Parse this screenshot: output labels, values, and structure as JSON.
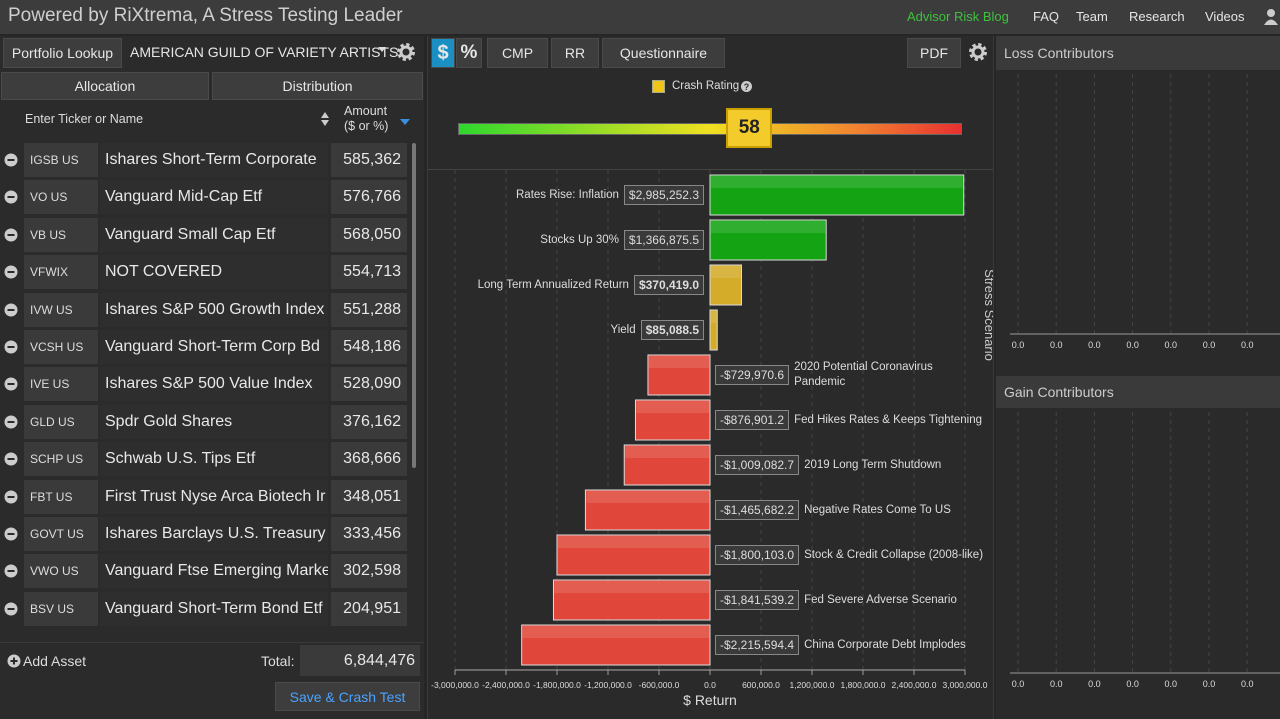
{
  "header": {
    "title": "Powered by RiXtrema, A Stress Testing Leader",
    "links": [
      "Advisor Risk Blog",
      "FAQ",
      "Team",
      "Research",
      "Videos"
    ]
  },
  "portfolio": {
    "lookup_button": "Portfolio Lookup",
    "selected": "AMERICAN GUILD OF VARIETY ARTISTS...",
    "tabs": [
      "Allocation",
      "Distribution"
    ],
    "columns": [
      "Enter Ticker or Name",
      "Amount ($ or %)"
    ],
    "rows": [
      [
        "IGSB US",
        "Ishares Short-Term Corporate",
        "585,362"
      ],
      [
        "VO US",
        "Vanguard Mid-Cap Etf",
        "576,766"
      ],
      [
        "VB US",
        "Vanguard Small Cap Etf",
        "568,050"
      ],
      [
        "VFWIX",
        "NOT COVERED",
        "554,713"
      ],
      [
        "IVW US",
        "Ishares S&P 500 Growth Index",
        "551,288"
      ],
      [
        "VCSH US",
        "Vanguard Short-Term Corp Bd",
        "548,186"
      ],
      [
        "IVE US",
        "Ishares S&P 500 Value Index",
        "528,090"
      ],
      [
        "GLD US",
        "Spdr Gold Shares",
        "376,162"
      ],
      [
        "SCHP US",
        "Schwab U.S. Tips Etf",
        "368,666"
      ],
      [
        "FBT US",
        "First Trust Nyse Arca Biotech Ir",
        "348,051"
      ],
      [
        "GOVT US",
        "Ishares Barclays U.S. Treasury",
        "333,456"
      ],
      [
        "VWO US",
        "Vanguard Ftse Emerging Marke",
        "302,598"
      ],
      [
        "BSV US",
        "Vanguard Short-Term Bond Etf",
        "204,951"
      ]
    ],
    "add_asset": "Add Asset",
    "total_label": "Total:",
    "total": "6,844,476",
    "save_button": "Save & Crash Test"
  },
  "toolbar": {
    "buttons": [
      "$",
      "%",
      "CMP",
      "RR",
      "Questionnaire",
      "PDF"
    ]
  },
  "crash_rating": {
    "label": "Crash Rating",
    "value": 58
  },
  "chart_data": {
    "type": "bar",
    "orientation": "horizontal",
    "categories": [
      "Rates Rise: Inflation",
      "Stocks Up 30%",
      "Long Term Annualized Return",
      "Yield",
      "2020 Potential Coronavirus Pandemic",
      "Fed Hikes Rates & Keeps Tightening",
      "2019 Long Term Shutdown",
      "Negative Rates Come To US",
      "Stock & Credit Collapse (2008-like)",
      "Fed Severe Adverse Scenario",
      "China Corporate Debt Implodes"
    ],
    "values": [
      2985252.3,
      1366875.5,
      370419.0,
      85088.5,
      -729970.6,
      -876901.2,
      -1009082.7,
      -1465682.2,
      -1800103.0,
      -1841539.2,
      -2215594.4
    ],
    "value_labels": [
      "$2,985,252.3",
      "$1,366,875.5",
      "$370,419.0",
      "$85,088.5",
      "-$729,970.6",
      "-$876,901.2",
      "-$1,009,082.7",
      "-$1,465,682.2",
      "-$1,800,103.0",
      "-$1,841,539.2",
      "-$2,215,594.4"
    ],
    "colors": [
      "#13a313",
      "#13a313",
      "#d4ac2a",
      "#d4ac2a",
      "#e0473a",
      "#e0473a",
      "#e0473a",
      "#e0473a",
      "#e0473a",
      "#e0473a",
      "#e0473a"
    ],
    "xlim": [
      -3000000,
      3000000
    ],
    "xticks": [
      {
        "value": -3000000,
        "label": "-3,000,000.0"
      },
      {
        "value": -2400000,
        "label": "-2,400,000.0"
      },
      {
        "value": -1800000,
        "label": "-1,800,000.0"
      },
      {
        "value": -1200000,
        "label": "-1,200,000.0"
      },
      {
        "value": -600000,
        "label": "-600,000.0"
      },
      {
        "value": 0,
        "label": "0.0"
      },
      {
        "value": 600000,
        "label": "600,000.0"
      },
      {
        "value": 1200000,
        "label": "1,200,000.0"
      },
      {
        "value": 1800000,
        "label": "1,800,000.0"
      },
      {
        "value": 2400000,
        "label": "2,400,000.0"
      },
      {
        "value": 3000000,
        "label": "3,000,000.0"
      }
    ],
    "xlabel": "$ Return",
    "ylabel": "Stress Scenario",
    "grid": true
  },
  "loss_contributors": {
    "title": "Loss Contributors",
    "ticks": [
      "0.0",
      "0.0",
      "0.0",
      "0.0",
      "0.0",
      "0.0",
      "0.0"
    ]
  },
  "gain_contributors": {
    "title": "Gain Contributors",
    "ticks": [
      "0.0",
      "0.0",
      "0.0",
      "0.0",
      "0.0",
      "0.0",
      "0.0"
    ]
  }
}
